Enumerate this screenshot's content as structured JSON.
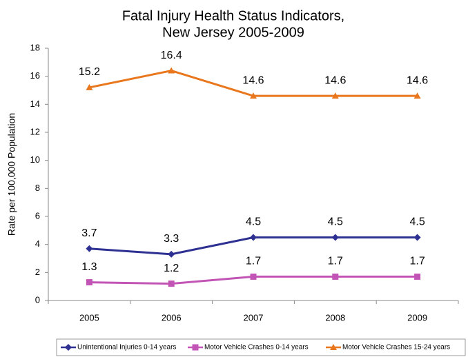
{
  "chart_data": {
    "type": "line",
    "title": [
      "Fatal Injury Health Status Indicators,",
      "New Jersey 2005-2009"
    ],
    "y_label": "Rate per 100,000 Population",
    "categories": [
      "2005",
      "2006",
      "2007",
      "2008",
      "2009"
    ],
    "series": [
      {
        "name": "Unintentional Injuries 0-14 years",
        "color": "#2e3192",
        "marker": "diamond",
        "values": [
          3.7,
          3.3,
          4.5,
          4.5,
          4.5
        ]
      },
      {
        "name": "Motor Vehicle Crashes 0-14 years",
        "color": "#c254b5",
        "marker": "square",
        "values": [
          1.3,
          1.2,
          1.7,
          1.7,
          1.7
        ]
      },
      {
        "name": "Motor Vehicle Crashes 15-24 years",
        "color": "#e8771e",
        "marker": "triangle",
        "values": [
          15.2,
          16.4,
          14.6,
          14.6,
          14.6
        ]
      }
    ],
    "ylim": [
      0,
      18
    ],
    "yticks": [
      0,
      2,
      4,
      6,
      8,
      10,
      12,
      14,
      16,
      18
    ],
    "grid": false,
    "legend": "bottom"
  }
}
